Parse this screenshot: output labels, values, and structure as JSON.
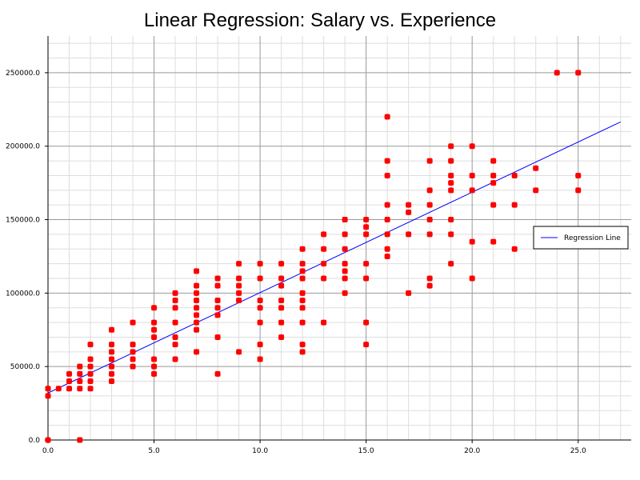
{
  "chart_data": {
    "type": "scatter",
    "title": "Linear Regression: Salary vs. Experience",
    "xlabel": "",
    "ylabel": "",
    "xlim": [
      0,
      27.5
    ],
    "ylim": [
      0,
      275000
    ],
    "x_ticks": [
      "0.0",
      "5.0",
      "10.0",
      "15.0",
      "20.0",
      "25.0"
    ],
    "y_ticks": [
      "0.0",
      "50000.0",
      "100000.0",
      "150000.0",
      "200000.0",
      "250000.0"
    ],
    "grid": true,
    "legend_position": "right",
    "colors": {
      "points": "#ff0000",
      "line": "#0000ff"
    },
    "series": [
      {
        "type": "scatter",
        "points": [
          [
            0,
            0
          ],
          [
            0,
            30000
          ],
          [
            0,
            35000
          ],
          [
            0.5,
            35000
          ],
          [
            1,
            35000
          ],
          [
            1,
            40000
          ],
          [
            1,
            45000
          ],
          [
            1.5,
            0
          ],
          [
            1.5,
            35000
          ],
          [
            1.5,
            40000
          ],
          [
            1.5,
            45000
          ],
          [
            1.5,
            50000
          ],
          [
            2,
            35000
          ],
          [
            2,
            40000
          ],
          [
            2,
            45000
          ],
          [
            2,
            50000
          ],
          [
            2,
            55000
          ],
          [
            2,
            65000
          ],
          [
            3,
            40000
          ],
          [
            3,
            45000
          ],
          [
            3,
            50000
          ],
          [
            3,
            55000
          ],
          [
            3,
            60000
          ],
          [
            3,
            65000
          ],
          [
            3,
            75000
          ],
          [
            4,
            50000
          ],
          [
            4,
            55000
          ],
          [
            4,
            60000
          ],
          [
            4,
            65000
          ],
          [
            4,
            80000
          ],
          [
            5,
            45000
          ],
          [
            5,
            50000
          ],
          [
            5,
            55000
          ],
          [
            5,
            70000
          ],
          [
            5,
            75000
          ],
          [
            5,
            80000
          ],
          [
            5,
            90000
          ],
          [
            6,
            55000
          ],
          [
            6,
            65000
          ],
          [
            6,
            70000
          ],
          [
            6,
            80000
          ],
          [
            6,
            90000
          ],
          [
            6,
            95000
          ],
          [
            6,
            100000
          ],
          [
            7,
            60000
          ],
          [
            7,
            75000
          ],
          [
            7,
            80000
          ],
          [
            7,
            85000
          ],
          [
            7,
            90000
          ],
          [
            7,
            95000
          ],
          [
            7,
            100000
          ],
          [
            7,
            105000
          ],
          [
            7,
            115000
          ],
          [
            8,
            45000
          ],
          [
            8,
            70000
          ],
          [
            8,
            85000
          ],
          [
            8,
            90000
          ],
          [
            8,
            95000
          ],
          [
            8,
            105000
          ],
          [
            8,
            110000
          ],
          [
            9,
            60000
          ],
          [
            9,
            95000
          ],
          [
            9,
            100000
          ],
          [
            9,
            105000
          ],
          [
            9,
            110000
          ],
          [
            9,
            120000
          ],
          [
            10,
            55000
          ],
          [
            10,
            65000
          ],
          [
            10,
            80000
          ],
          [
            10,
            90000
          ],
          [
            10,
            95000
          ],
          [
            10,
            110000
          ],
          [
            10,
            120000
          ],
          [
            11,
            70000
          ],
          [
            11,
            80000
          ],
          [
            11,
            90000
          ],
          [
            11,
            95000
          ],
          [
            11,
            105000
          ],
          [
            11,
            110000
          ],
          [
            11,
            120000
          ],
          [
            12,
            60000
          ],
          [
            12,
            65000
          ],
          [
            12,
            80000
          ],
          [
            12,
            90000
          ],
          [
            12,
            95000
          ],
          [
            12,
            100000
          ],
          [
            12,
            110000
          ],
          [
            12,
            115000
          ],
          [
            12,
            120000
          ],
          [
            12,
            130000
          ],
          [
            13,
            80000
          ],
          [
            13,
            110000
          ],
          [
            13,
            120000
          ],
          [
            13,
            130000
          ],
          [
            13,
            140000
          ],
          [
            14,
            100000
          ],
          [
            14,
            110000
          ],
          [
            14,
            115000
          ],
          [
            14,
            120000
          ],
          [
            14,
            130000
          ],
          [
            14,
            140000
          ],
          [
            14,
            150000
          ],
          [
            15,
            65000
          ],
          [
            15,
            80000
          ],
          [
            15,
            110000
          ],
          [
            15,
            120000
          ],
          [
            15,
            140000
          ],
          [
            15,
            145000
          ],
          [
            15,
            150000
          ],
          [
            16,
            125000
          ],
          [
            16,
            130000
          ],
          [
            16,
            140000
          ],
          [
            16,
            150000
          ],
          [
            16,
            160000
          ],
          [
            16,
            180000
          ],
          [
            16,
            190000
          ],
          [
            16,
            220000
          ],
          [
            17,
            100000
          ],
          [
            17,
            140000
          ],
          [
            17,
            155000
          ],
          [
            17,
            160000
          ],
          [
            18,
            105000
          ],
          [
            18,
            110000
          ],
          [
            18,
            140000
          ],
          [
            18,
            150000
          ],
          [
            18,
            160000
          ],
          [
            18,
            170000
          ],
          [
            18,
            190000
          ],
          [
            19,
            120000
          ],
          [
            19,
            140000
          ],
          [
            19,
            150000
          ],
          [
            19,
            170000
          ],
          [
            19,
            175000
          ],
          [
            19,
            180000
          ],
          [
            19,
            190000
          ],
          [
            19,
            200000
          ],
          [
            20,
            110000
          ],
          [
            20,
            135000
          ],
          [
            20,
            170000
          ],
          [
            20,
            180000
          ],
          [
            20,
            200000
          ],
          [
            21,
            135000
          ],
          [
            21,
            160000
          ],
          [
            21,
            175000
          ],
          [
            21,
            180000
          ],
          [
            21,
            190000
          ],
          [
            22,
            130000
          ],
          [
            22,
            160000
          ],
          [
            22,
            180000
          ],
          [
            23,
            170000
          ],
          [
            23,
            185000
          ],
          [
            24,
            250000
          ],
          [
            25,
            170000
          ],
          [
            25,
            180000
          ],
          [
            25,
            250000
          ]
        ]
      },
      {
        "type": "line",
        "name": "Regression Line",
        "points": [
          [
            0,
            32000
          ],
          [
            27,
            216500
          ]
        ]
      }
    ]
  }
}
